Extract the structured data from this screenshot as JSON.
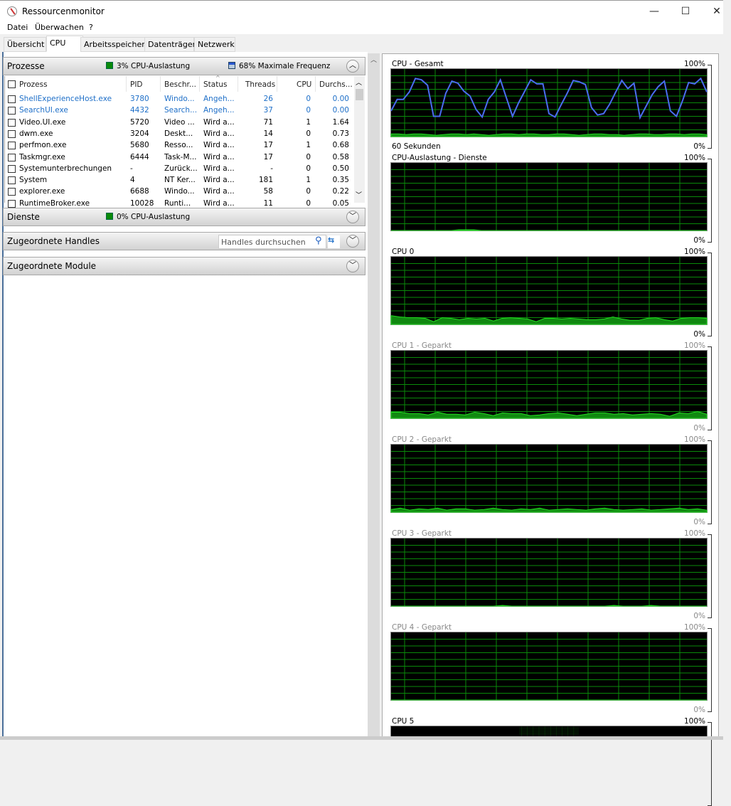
{
  "window": {
    "title": "Ressourcenmonitor",
    "minimize": "—",
    "maximize": "☐",
    "close": "✕"
  },
  "menu": [
    "Datei",
    "Überwachen",
    "?"
  ],
  "tabs": [
    {
      "label": "Übersicht"
    },
    {
      "label": "CPU",
      "active": true
    },
    {
      "label": "Arbeitsspeicher"
    },
    {
      "label": "Datenträger"
    },
    {
      "label": "Netzwerk"
    }
  ],
  "processes": {
    "title": "Prozesse",
    "cpu_usage": "3% CPU-Auslastung",
    "max_freq": "68% Maximale Frequenz",
    "columns": [
      "Prozess",
      "PID",
      "Beschr...",
      "Status",
      "Threads",
      "CPU",
      "Durchs..."
    ],
    "rows": [
      [
        "ShellExperienceHost.exe",
        "3780",
        "Windo...",
        "Angeh...",
        "26",
        "0",
        "0.00"
      ],
      [
        "SearchUI.exe",
        "4432",
        "Search...",
        "Angeh...",
        "37",
        "0",
        "0.00"
      ],
      [
        "Video.UI.exe",
        "5720",
        "Video ...",
        "Wird a...",
        "71",
        "1",
        "1.64"
      ],
      [
        "dwm.exe",
        "3204",
        "Deskt...",
        "Wird a...",
        "14",
        "0",
        "0.73"
      ],
      [
        "perfmon.exe",
        "5680",
        "Resso...",
        "Wird a...",
        "17",
        "1",
        "0.68"
      ],
      [
        "Taskmgr.exe",
        "6444",
        "Task-M...",
        "Wird a...",
        "17",
        "0",
        "0.58"
      ],
      [
        "Systemunterbrechungen",
        "-",
        "Zurück...",
        "Wird a...",
        "-",
        "0",
        "0.50"
      ],
      [
        "System",
        "4",
        "NT Ker...",
        "Wird a...",
        "181",
        "1",
        "0.35"
      ],
      [
        "explorer.exe",
        "6688",
        "Windo...",
        "Wird a...",
        "58",
        "0",
        "0.22"
      ],
      [
        "RuntimeBroker.exe",
        "10028",
        "Runti...",
        "Wird a...",
        "11",
        "0",
        "0.05"
      ]
    ],
    "highlighted_color": "#1e6fc8"
  },
  "services": {
    "title": "Dienste",
    "cpu_usage": "0% CPU-Auslastung"
  },
  "handles": {
    "title": "Zugeordnete Handles",
    "search_placeholder": "Handles durchsuchen"
  },
  "modules": {
    "title": "Zugeordnete Module"
  },
  "chart_data": [
    {
      "type": "line",
      "title": "CPU - Gesamt",
      "ymax_label": "100%",
      "ymin_label": "0%",
      "xlabel": "60 Sekunden",
      "ylim": [
        0,
        100
      ],
      "grid": true,
      "series": [
        {
          "color": "#4a6cf0",
          "values": [
            38,
            55,
            55,
            66,
            86,
            84,
            76,
            30,
            30,
            64,
            82,
            79,
            67,
            60,
            40,
            29,
            55,
            66,
            84,
            57,
            30,
            50,
            67,
            84,
            78,
            78,
            34,
            29,
            47,
            64,
            83,
            81,
            77,
            43,
            32,
            34,
            48,
            66,
            83,
            71,
            79,
            28,
            45,
            62,
            74,
            82,
            38,
            30,
            53,
            80,
            78,
            86,
            66
          ]
        },
        {
          "color": "#22dd22",
          "fill": true,
          "values": [
            4,
            4,
            3,
            4,
            4,
            3,
            2,
            3,
            4,
            4,
            3,
            4,
            3,
            2,
            3,
            4,
            4,
            3,
            4,
            4,
            3,
            3,
            4,
            4,
            3,
            2,
            3,
            4,
            4,
            3,
            3,
            2,
            3,
            4,
            4,
            3,
            3,
            4,
            4,
            3,
            4,
            4,
            3
          ]
        }
      ]
    },
    {
      "type": "area",
      "title": "CPU-Auslastung - Dienste",
      "ymax_label": "100%",
      "ymin_label": "0%",
      "ylim": [
        0,
        100
      ],
      "grid": true,
      "series": [
        {
          "color": "#22dd22",
          "fill": true,
          "values": [
            0,
            0,
            0,
            0,
            0,
            0,
            0,
            0,
            0,
            1,
            1,
            1,
            0,
            0,
            0,
            0,
            0,
            0,
            0,
            0,
            0,
            0,
            0,
            0,
            0,
            0,
            0,
            0,
            0,
            0,
            0,
            0,
            0,
            0,
            0,
            0,
            0,
            0,
            0,
            0,
            0,
            0,
            0
          ]
        }
      ]
    },
    {
      "type": "area",
      "title": "CPU 0",
      "ymax_label": "100%",
      "ymin_label": "0%",
      "ylim": [
        0,
        100
      ],
      "grid": true,
      "series": [
        {
          "color": "#22dd22",
          "fill": true,
          "values": [
            13,
            11,
            10,
            10,
            9,
            4,
            10,
            9,
            7,
            9,
            8,
            9,
            5,
            9,
            10,
            9,
            8,
            4,
            9,
            9,
            8,
            9,
            8,
            7,
            7,
            8,
            11,
            8,
            6,
            6,
            9,
            10,
            7,
            5,
            9,
            10,
            10,
            9
          ]
        }
      ]
    },
    {
      "type": "area",
      "title": "CPU 1 - Geparkt",
      "ymax_label": "100%",
      "ymin_label": "0%",
      "ylim": [
        0,
        100
      ],
      "grid": true,
      "series": [
        {
          "color": "#22dd22",
          "fill": true,
          "values": [
            9,
            9,
            7,
            7,
            5,
            9,
            6,
            6,
            5,
            9,
            7,
            4,
            8,
            7,
            7,
            4,
            5,
            7,
            8,
            6,
            4,
            6,
            8,
            8,
            6,
            7,
            5,
            6,
            7,
            6,
            3,
            8,
            7,
            10,
            6
          ]
        }
      ]
    },
    {
      "type": "area",
      "title": "CPU 2 - Geparkt",
      "ymax_label": "100%",
      "ymin_label": "0%",
      "ylim": [
        0,
        100
      ],
      "grid": true,
      "series": [
        {
          "color": "#22dd22",
          "fill": true,
          "values": [
            4,
            6,
            3,
            5,
            4,
            6,
            3,
            5,
            5,
            3,
            4,
            6,
            4,
            3,
            5,
            4,
            6,
            3,
            4,
            5,
            4,
            3,
            5,
            6,
            4,
            3,
            4,
            5,
            3,
            4,
            5,
            6,
            4,
            5,
            3
          ]
        }
      ]
    },
    {
      "type": "area",
      "title": "CPU 3 - Geparkt",
      "ymax_label": "100%",
      "ymin_label": "0%",
      "ylim": [
        0,
        100
      ],
      "grid": true,
      "series": [
        {
          "color": "#22dd22",
          "fill": true,
          "values": [
            0,
            0,
            0,
            0,
            0,
            0,
            0,
            0,
            0,
            0,
            0,
            0,
            1,
            0,
            0,
            0,
            0,
            0,
            0,
            0,
            0,
            0,
            0,
            0,
            1,
            0,
            0,
            0,
            1,
            0,
            0,
            0,
            0,
            0,
            0
          ]
        }
      ]
    },
    {
      "type": "area",
      "title": "CPU 4 - Geparkt",
      "ymax_label": "100%",
      "ymin_label": "0%",
      "ylim": [
        0,
        100
      ],
      "grid": true,
      "series": [
        {
          "color": "#22dd22",
          "fill": true,
          "values": [
            0,
            0,
            0,
            0,
            0,
            0,
            0,
            0,
            0,
            0,
            0,
            0,
            0,
            0,
            0,
            0,
            0,
            0,
            0,
            0
          ]
        }
      ]
    },
    {
      "type": "area",
      "title": "CPU 5",
      "ymax_label": "100%",
      "ylim": [
        0,
        100
      ],
      "grid": true,
      "series": []
    }
  ]
}
